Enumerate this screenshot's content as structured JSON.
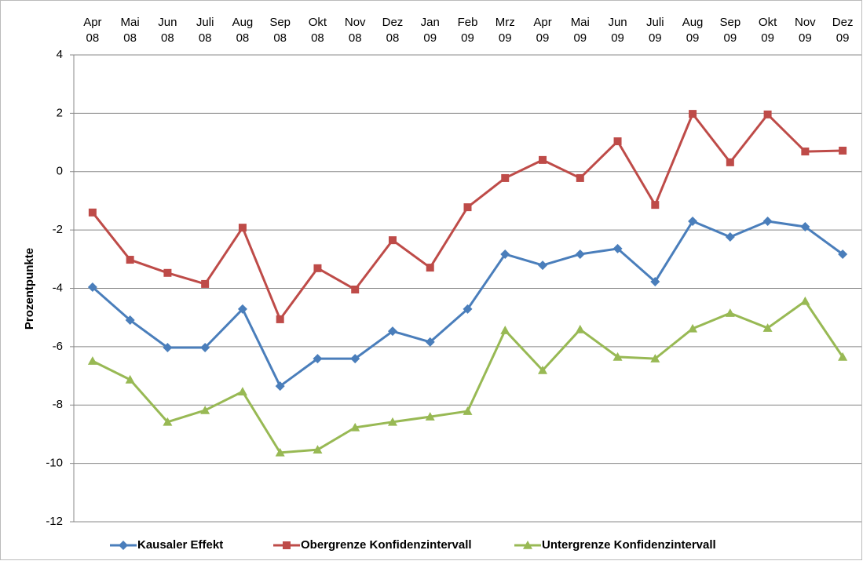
{
  "chart_data": {
    "type": "line",
    "y_label": "Prozentpunkte",
    "categories": [
      "Apr 08",
      "Mai 08",
      "Jun 08",
      "Juli 08",
      "Aug 08",
      "Sep 08",
      "Okt 08",
      "Nov 08",
      "Dez 08",
      "Jan 09",
      "Feb 09",
      "Mrz 09",
      "Apr 09",
      "Mai 09",
      "Jun 09",
      "Juli 09",
      "Aug 09",
      "Sep 09",
      "Okt 09",
      "Nov 09",
      "Dez 09"
    ],
    "series": [
      {
        "name": "Kausaler Effekt",
        "color": "#4a7ebb",
        "marker": "diamond",
        "values": [
          -3.96,
          -5.09,
          -6.03,
          -6.03,
          -4.71,
          -7.35,
          -6.41,
          -6.41,
          -5.47,
          -5.84,
          -4.71,
          -2.83,
          -3.21,
          -2.83,
          -2.64,
          -3.77,
          -1.7,
          -2.24,
          -1.7,
          -1.89,
          -2.83
        ]
      },
      {
        "name": "Obergrenze Konfidenzintervall",
        "color": "#be4b48",
        "marker": "square",
        "values": [
          -1.4,
          -3.02,
          -3.47,
          -3.85,
          -1.92,
          -5.06,
          -3.31,
          -4.04,
          -2.35,
          -3.29,
          -1.22,
          -0.22,
          0.4,
          -0.22,
          1.04,
          -1.14,
          1.98,
          0.32,
          1.96,
          0.69,
          0.72
        ]
      },
      {
        "name": "Untergrenze Konfidenzintervall",
        "color": "#98b954",
        "marker": "triangle",
        "values": [
          -6.49,
          -7.13,
          -8.58,
          -8.18,
          -7.54,
          -9.63,
          -9.53,
          -8.77,
          -8.58,
          -8.4,
          -8.21,
          -5.44,
          -6.81,
          -5.41,
          -6.35,
          -6.41,
          -5.38,
          -4.85,
          -5.36,
          -4.44,
          -6.35
        ]
      }
    ],
    "ylim": [
      -12,
      4
    ],
    "yticks": [
      -12,
      -10,
      -8,
      -6,
      -4,
      -2,
      0,
      2,
      4
    ],
    "grid": true,
    "legend": "bottom"
  }
}
